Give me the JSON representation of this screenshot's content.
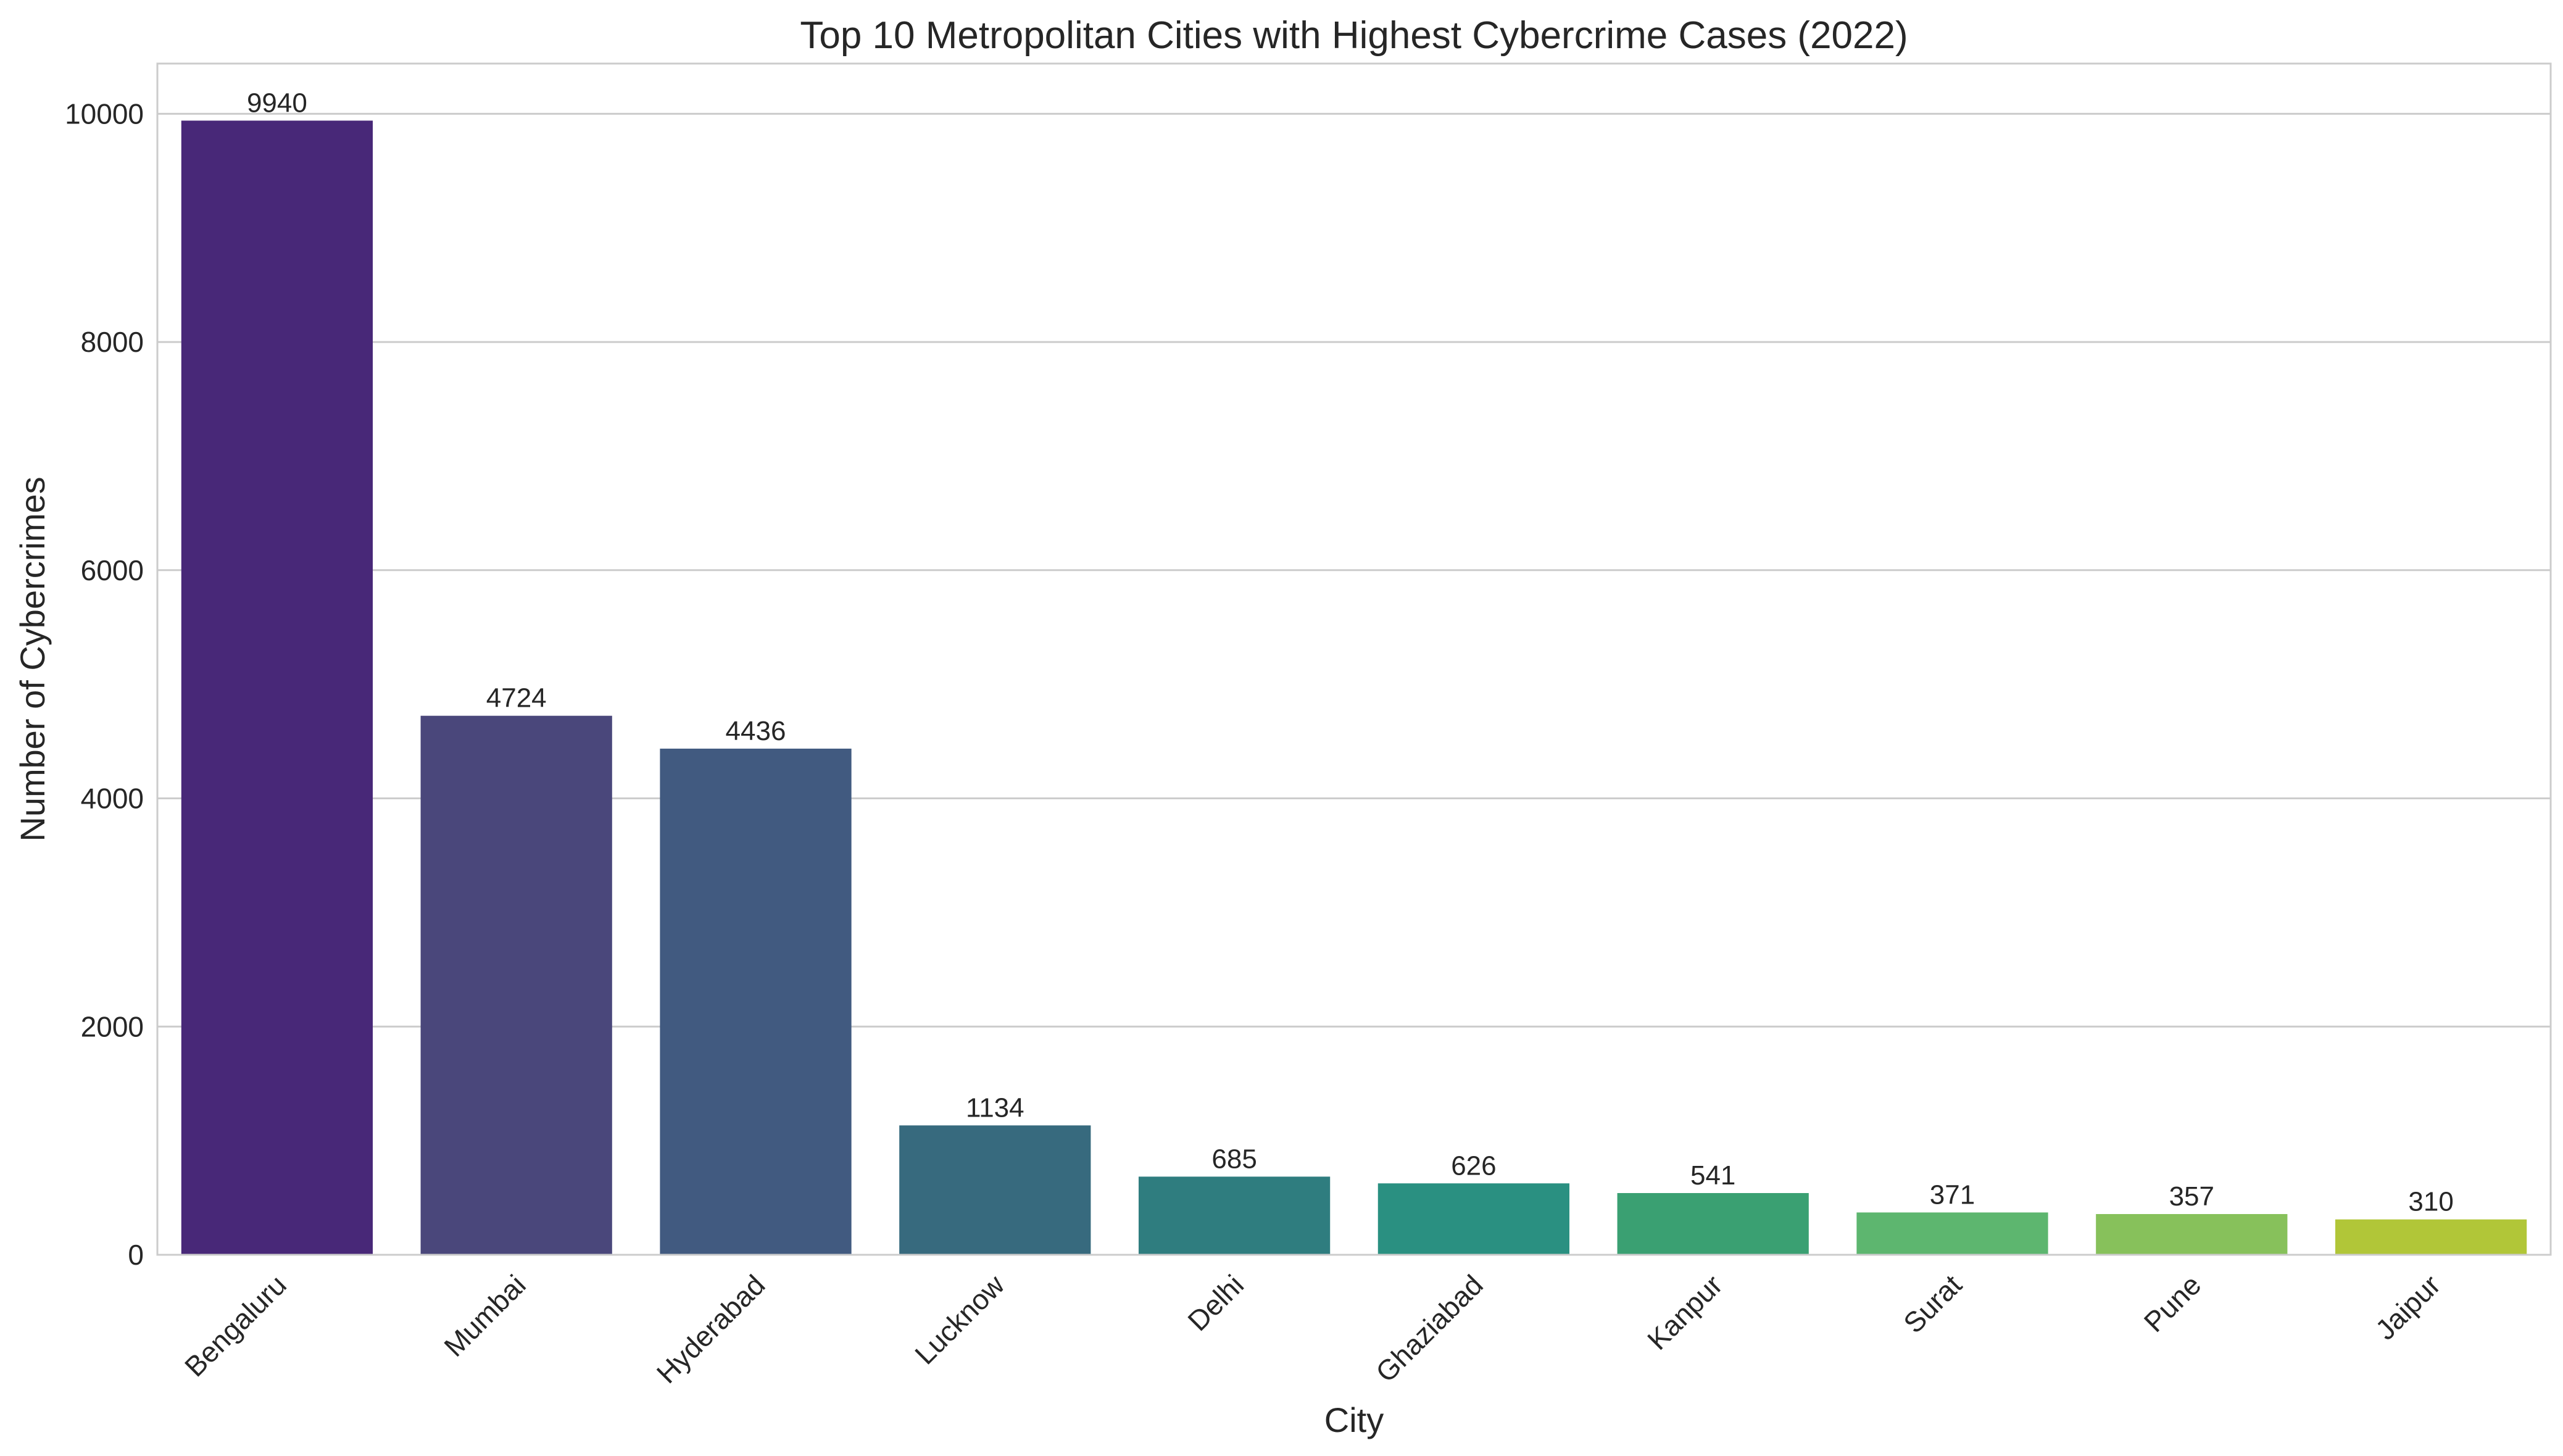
{
  "chart_data": {
    "type": "bar",
    "title": "Top 10 Metropolitan Cities with Highest Cybercrime Cases (2022)",
    "xlabel": "City",
    "ylabel": "Number of Cybercrimes",
    "categories": [
      "Bengaluru",
      "Mumbai",
      "Hyderabad",
      "Lucknow",
      "Delhi",
      "Ghaziabad",
      "Kanpur",
      "Surat",
      "Pune",
      "Jaipur"
    ],
    "values": [
      9940,
      4724,
      4436,
      1134,
      685,
      626,
      541,
      371,
      357,
      310
    ],
    "bar_colors": [
      "#482878",
      "#4a477b",
      "#415a80",
      "#376a7e",
      "#2f7d7f",
      "#2a9081",
      "#3aa072",
      "#5db66f",
      "#87c15b",
      "#b1c638"
    ],
    "ylim": [
      0,
      10440
    ],
    "yticks": [
      0,
      2000,
      4000,
      6000,
      8000,
      10000
    ],
    "grid": true,
    "legend": "none"
  }
}
